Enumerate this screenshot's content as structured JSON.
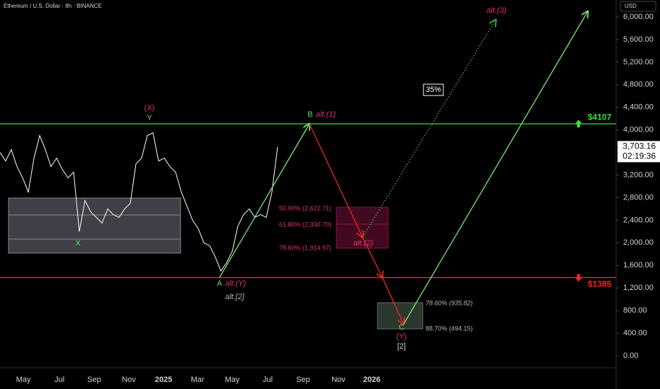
{
  "chart_data": {
    "type": "line",
    "title": "Ethereum / U.S. Dollar · 8h · BINANCE",
    "currency": "USD",
    "color": "#ffffff",
    "values": [
      3600,
      3450,
      3650,
      3350,
      3150,
      2900,
      3500,
      3900,
      3650,
      3350,
      3500,
      3300,
      3150,
      3250,
      2200,
      2750,
      2550,
      2450,
      2350,
      2600,
      2500,
      2450,
      2600,
      2700,
      3400,
      3500,
      3900,
      3950,
      3450,
      3500,
      3350,
      3250,
      2900,
      2650,
      2400,
      2250,
      2000,
      1950,
      1750,
      1500,
      1650,
      1850,
      2300,
      2500,
      2600,
      2450,
      2500,
      2450,
      2900,
      3700
    ],
    "last_price": {
      "value": 3703.16,
      "label": "3,703.16"
    },
    "countdown": "02:19:36",
    "ylim": [
      0,
      6000
    ],
    "yticks": [
      {
        "value": 0,
        "label": "0.00"
      },
      {
        "value": 400,
        "label": "400.00"
      },
      {
        "value": 800,
        "label": "800.00"
      },
      {
        "value": 1200,
        "label": "1,200.00"
      },
      {
        "value": 1600,
        "label": "1,600.00"
      },
      {
        "value": 2000,
        "label": "2,000.00"
      },
      {
        "value": 2400,
        "label": "2,400.00"
      },
      {
        "value": 2800,
        "label": "2,800.00"
      },
      {
        "value": 3200,
        "label": "3,200.00"
      },
      {
        "value": 4000,
        "label": "4,000.00"
      },
      {
        "value": 4400,
        "label": "4,400.00"
      },
      {
        "value": 4800,
        "label": "4,800.00"
      },
      {
        "value": 5200,
        "label": "5,200.00"
      },
      {
        "value": 5600,
        "label": "5,600.00"
      },
      {
        "value": 6000,
        "label": "6,000.00"
      }
    ],
    "x_labels": [
      "May",
      "Jul",
      "Sep",
      "Nov",
      "2025",
      "Mar",
      "May",
      "Jul",
      "Sep",
      "Nov",
      "2026"
    ],
    "levels": [
      {
        "value": 4107,
        "label": "$4107",
        "color": "#3ddc3d"
      },
      {
        "value": 1385,
        "label": "$1385",
        "color": "#f2281e"
      }
    ],
    "zones": [
      {
        "top": 2794,
        "bottom": 1817,
        "lines": [
          2493,
          2067
        ],
        "color": "#9a9fae"
      },
      {
        "top": 2630,
        "bottom": 1904,
        "lines": [
          2330
        ],
        "color": "#a3184f"
      },
      {
        "top": 940,
        "bottom": 476,
        "lines": [],
        "color": "#6f8a72"
      }
    ],
    "paths": [
      {
        "color": "#7ee87e",
        "dotted": false,
        "values": [
          1385,
          4107
        ]
      },
      {
        "color": "#f2281e",
        "dotted": false,
        "values": [
          4107,
          2100,
          1385,
          560
        ]
      },
      {
        "color": "#7ee87e",
        "dotted": false,
        "values": [
          560,
          6100
        ]
      },
      {
        "color": "#3fbf3f",
        "dotted": true,
        "values": [
          2100,
          5950
        ]
      }
    ],
    "annotations": [
      {
        "text": "(X)",
        "color": "#e0307a"
      },
      {
        "text": "Y",
        "color": "#6fd86f"
      },
      {
        "text": "X",
        "color": "#6fd86f"
      },
      {
        "text": "A",
        "color": "#6fd86f"
      },
      {
        "text": "alt.(Y)",
        "color": "#e0307a"
      },
      {
        "text": "alt.[2]",
        "color": "#b2b5be"
      },
      {
        "text": "B",
        "color": "#6fd86f"
      },
      {
        "text": "alt.(1)",
        "color": "#e0307a"
      },
      {
        "text": "alt.(2)",
        "color": "#e0307a"
      },
      {
        "text": "C",
        "color": "#6fd86f"
      },
      {
        "text": "(Y)",
        "color": "#e0307a"
      },
      {
        "text": "[2]",
        "color": "#d1d4dc"
      },
      {
        "text": "alt.(3)",
        "color": "#e0307a"
      },
      {
        "text": "35%",
        "color": "#ffffff"
      },
      {
        "text": "50.00% (2,622.71)",
        "color": "#e0307a"
      },
      {
        "text": "61.80% (2,330.70)",
        "color": "#e0307a"
      },
      {
        "text": "78.60% (1,914.97)",
        "color": "#e0307a"
      },
      {
        "text": "78.60% (935.82)",
        "color": "#b2b5be"
      },
      {
        "text": "88.70% (494.15)",
        "color": "#b2b5be"
      }
    ]
  }
}
